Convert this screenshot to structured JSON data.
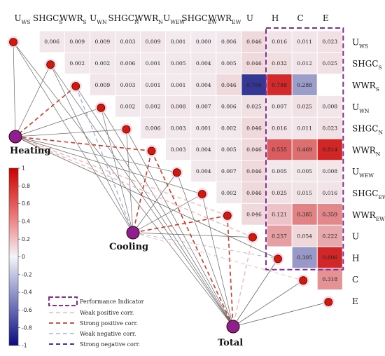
{
  "variables": [
    {
      "id": "U_WS",
      "main": "U",
      "sub": "WS"
    },
    {
      "id": "SHGC_S",
      "main": "SHGC",
      "sub": "S"
    },
    {
      "id": "WWR_S",
      "main": "WWR",
      "sub": "S"
    },
    {
      "id": "U_WN",
      "main": "U",
      "sub": "WN"
    },
    {
      "id": "SHGC_N",
      "main": "SHGC",
      "sub": "N"
    },
    {
      "id": "WWR_N",
      "main": "WWR",
      "sub": "N"
    },
    {
      "id": "U_WEW",
      "main": "U",
      "sub": "WEW"
    },
    {
      "id": "SHGC_EW",
      "main": "SHGC",
      "sub": "EW"
    },
    {
      "id": "WWR_EW",
      "main": "WWR",
      "sub": "EW"
    },
    {
      "id": "U",
      "main": "U",
      "sub": ""
    },
    {
      "id": "H",
      "main": "H",
      "sub": ""
    },
    {
      "id": "C",
      "main": "C",
      "sub": ""
    },
    {
      "id": "E",
      "main": "E",
      "sub": ""
    }
  ],
  "chart_data": {
    "type": "heatmap",
    "description_shown": "upper-triangular correlation matrix",
    "rows": [
      [
        "0.006",
        "0.009",
        "0.009",
        "0.003",
        "0.009",
        "0.001",
        "0.000",
        "0.006",
        "0.046",
        "0.016",
        "0.011",
        "0.023"
      ],
      [
        "0.002",
        "0.002",
        "0.006",
        "0.001",
        "0.005",
        "0.004",
        "0.005",
        "0.046",
        "0.032",
        "0.012",
        "0.025"
      ],
      [
        "0.009",
        "0.003",
        "0.001",
        "0.001",
        "0.004",
        "0.046",
        "0.780",
        "0.788",
        "0.288"
      ],
      [
        "0.002",
        "0.002",
        "0.008",
        "0.007",
        "0.006",
        "0.025",
        "0.007",
        "0.025",
        "0.008"
      ],
      [
        "0.006",
        "0.003",
        "0.001",
        "0.002",
        "0.046",
        "0.016",
        "0.011",
        "0.023"
      ],
      [
        "0.003",
        "0.004",
        "0.005",
        "0.046",
        "0.555",
        "0.469",
        "0.814"
      ],
      [
        "0.004",
        "0.007",
        "0.046",
        "0.005",
        "0.005",
        "0.008"
      ],
      [
        "0.002",
        "0.046",
        "0.025",
        "0.015",
        "0.016"
      ],
      [
        "0.046",
        "0.121",
        "0.385",
        "0.359"
      ],
      [
        "0.257",
        "0.054",
        "0.222"
      ],
      [
        "0.305",
        "0.806"
      ],
      [
        "0.318"
      ]
    ],
    "signed_values_for_color": [
      [
        0.006,
        0.009,
        0.009,
        0.003,
        0.009,
        0.001,
        0.0,
        0.006,
        0.046,
        0.016,
        0.011,
        0.023
      ],
      [
        0.002,
        0.002,
        0.006,
        0.001,
        0.005,
        0.004,
        0.005,
        0.046,
        0.032,
        0.012,
        0.025
      ],
      [
        0.009,
        0.003,
        0.001,
        0.001,
        0.004,
        0.046,
        -0.78,
        0.788,
        -0.288
      ],
      [
        0.002,
        0.002,
        0.008,
        0.007,
        0.006,
        0.025,
        0.007,
        0.025,
        0.008
      ],
      [
        0.006,
        0.003,
        0.001,
        0.002,
        0.046,
        0.016,
        0.011,
        0.023
      ],
      [
        0.003,
        0.004,
        0.005,
        0.046,
        0.555,
        0.469,
        0.814
      ],
      [
        0.004,
        0.007,
        0.046,
        0.005,
        0.005,
        0.008
      ],
      [
        0.002,
        0.046,
        0.025,
        0.015,
        0.016
      ],
      [
        0.046,
        0.121,
        0.385,
        0.359
      ],
      [
        0.257,
        0.054,
        0.222
      ],
      [
        -0.305,
        0.806
      ],
      [
        0.318
      ]
    ],
    "colorbar": {
      "min": -1,
      "max": 1,
      "ticks": [
        "1",
        "0.8",
        "0.6",
        "0.4",
        "0.2",
        "0",
        "-0.2",
        "-0.4",
        "-0.6",
        "-0.8",
        "-1"
      ],
      "colors": {
        "positive": "#cc0000",
        "zero": "#f4f4f8",
        "negative": "#0b0b7e"
      }
    },
    "highlight_box": "Performance Indicator"
  },
  "network": {
    "nodes": [
      "Heating",
      "Cooling",
      "Total"
    ],
    "edges_shown": "lines connect every variable node to Heating, Cooling and Total; styled by correlation"
  },
  "legend": {
    "items": [
      {
        "label": "Performance Indicator",
        "style": "box",
        "color": "#8a2a9a"
      },
      {
        "label": "Weak positive corr.",
        "style": "line",
        "color": "#f2b8b8"
      },
      {
        "label": "Strong positive corr.",
        "style": "line",
        "color": "#cc3a2a"
      },
      {
        "label": "Weak negative corr.",
        "style": "line",
        "color": "#aab0d8"
      },
      {
        "label": "Strong negative corr.",
        "style": "line",
        "color": "#1a1f8c"
      }
    ]
  }
}
